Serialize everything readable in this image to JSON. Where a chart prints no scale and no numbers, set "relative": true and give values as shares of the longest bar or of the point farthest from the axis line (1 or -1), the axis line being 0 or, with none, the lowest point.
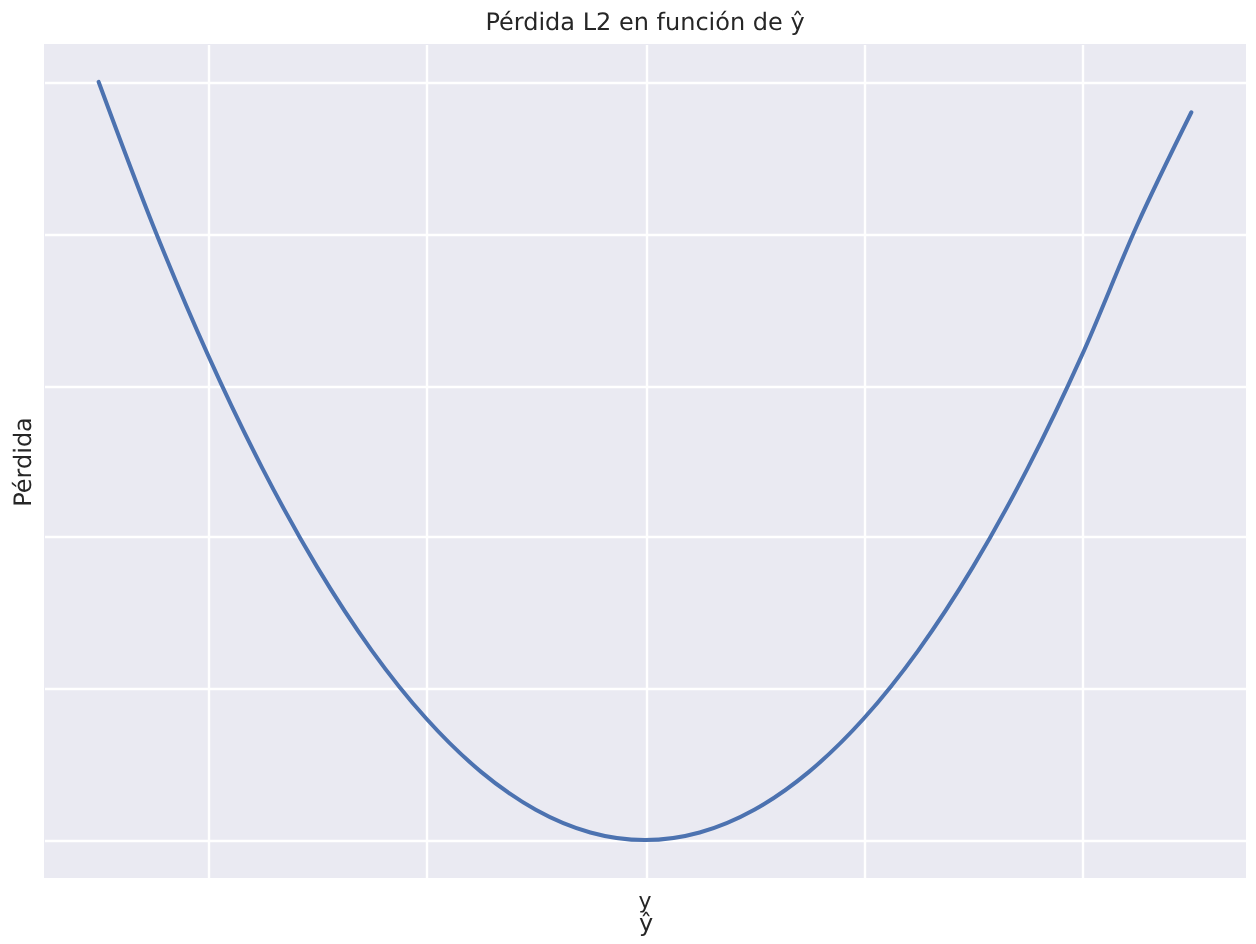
{
  "chart_data": {
    "type": "line",
    "title": "Pérdida L2 en función de ŷ",
    "xlabel": "ŷ",
    "ylabel": "Pérdida",
    "relative": true,
    "grid": true,
    "categories": [
      null,
      null,
      null,
      null,
      null,
      null,
      null,
      null,
      null,
      null,
      null,
      null,
      null,
      null,
      null,
      null,
      null,
      null,
      null,
      null,
      null
    ],
    "annotations": [
      "y"
    ],
    "series": [
      {
        "color": "#4c72b0",
        "values": [
          1.0,
          0.81,
          0.64,
          0.49,
          0.36,
          0.25,
          0.16,
          0.09,
          0.04,
          0.01,
          0,
          0.01,
          0.04,
          0.09,
          0.16,
          0.25,
          0.36,
          0.49,
          0.64,
          0.81,
          0.96
        ]
      }
    ]
  }
}
